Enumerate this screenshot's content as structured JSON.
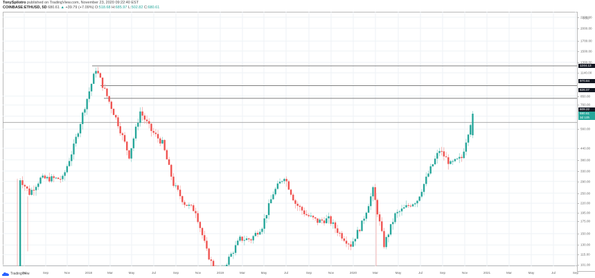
{
  "header": {
    "author": "TonySpilotro",
    "published": "published on TradingView.com, November 23, 2020 09:22:40 EST",
    "symbol": "COINBASE:ETHUSD, 5D",
    "last": "680.61",
    "change_arrow": "▲",
    "change": "+39.79 (+7.09%)",
    "o_label": "O:",
    "o": "518.68",
    "h_label": "H:",
    "h": "685.97",
    "l_label": "L:",
    "l": "502.82",
    "c_label": "C:",
    "c": "680.61"
  },
  "footer": {
    "logo_text": "TradingView",
    "logo_icon": "tradingview-cloud-icon"
  },
  "colors": {
    "up": "#26a69a",
    "down": "#ef5350",
    "grid": "#eef2f6",
    "hline": "#555555",
    "tag_dark": "#131722",
    "tag_green": "#26a69a"
  },
  "yaxis": {
    "currency": "USD",
    "labels": [
      "3000.00",
      "2600.00",
      "2300.00",
      "2000.00",
      "1700.00",
      "1500.00",
      "1300.00",
      "1140.00",
      "850.00",
      "760.00",
      "660.00",
      "560.00",
      "440.00",
      "380.00",
      "330.00",
      "290.00",
      "250.00",
      "220.00",
      "195.00",
      "175.00",
      "150.00",
      "130.00",
      "115.00",
      "101.00",
      "89.00",
      "79.00",
      "70.00",
      "62.00",
      "55.00"
    ],
    "price_tags": [
      {
        "label": "1244.13",
        "style": "dark"
      },
      {
        "label": "970.84",
        "style": "dark"
      },
      {
        "label": "826.07",
        "style": "dark"
      },
      {
        "label": "609.22",
        "style": "dark"
      },
      {
        "label": "680.61",
        "style": "green"
      },
      {
        "label": "3d 10h",
        "style": "green"
      }
    ]
  },
  "xaxis": {
    "labels": [
      "Jul",
      "Sep",
      "Nov",
      "2018",
      "Mar",
      "May",
      "Jul",
      "Sep",
      "Nov",
      "2019",
      "Mar",
      "May",
      "Jul",
      "Sep",
      "Nov",
      "2020",
      "Mar",
      "May",
      "Jul",
      "Sep",
      "Nov",
      "2021",
      "Mar",
      "May",
      "Jul",
      "Sep"
    ]
  },
  "chart_data": {
    "type": "candlestick",
    "title": "COINBASE:ETHUSD, 5D",
    "xlabel": "",
    "ylabel": "USD",
    "yscale": "log",
    "ylim": [
      50,
      3000
    ],
    "x_range": [
      "2017-05",
      "2021-09"
    ],
    "horizontal_levels": [
      1244.13,
      970.84,
      826.07,
      609.22
    ],
    "last_price": 680.61,
    "ohlc_last": {
      "open": 518.68,
      "high": 685.97,
      "low": 502.82,
      "close": 680.61,
      "change": 39.79,
      "change_pct": 7.09
    },
    "approx_path": [
      {
        "date": "2017-06",
        "close": 90
      },
      {
        "date": "2017-06-20",
        "close": 300
      },
      {
        "date": "2017-07",
        "close": 250
      },
      {
        "date": "2017-08",
        "close": 300
      },
      {
        "date": "2017-09",
        "close": 300
      },
      {
        "date": "2017-10",
        "close": 300
      },
      {
        "date": "2017-11",
        "close": 450
      },
      {
        "date": "2017-12",
        "close": 750
      },
      {
        "date": "2018-01",
        "close": 1200
      },
      {
        "date": "2018-02",
        "close": 850
      },
      {
        "date": "2018-03",
        "close": 600
      },
      {
        "date": "2018-04",
        "close": 400
      },
      {
        "date": "2018-05",
        "close": 700
      },
      {
        "date": "2018-06",
        "close": 550
      },
      {
        "date": "2018-07",
        "close": 470
      },
      {
        "date": "2018-08",
        "close": 280
      },
      {
        "date": "2018-09",
        "close": 220
      },
      {
        "date": "2018-10",
        "close": 200
      },
      {
        "date": "2018-11",
        "close": 120
      },
      {
        "date": "2018-12",
        "close": 85
      },
      {
        "date": "2019-01",
        "close": 110
      },
      {
        "date": "2019-02",
        "close": 140
      },
      {
        "date": "2019-03",
        "close": 140
      },
      {
        "date": "2019-04",
        "close": 165
      },
      {
        "date": "2019-05",
        "close": 250
      },
      {
        "date": "2019-06",
        "close": 310
      },
      {
        "date": "2019-07",
        "close": 220
      },
      {
        "date": "2019-08",
        "close": 190
      },
      {
        "date": "2019-09",
        "close": 175
      },
      {
        "date": "2019-10",
        "close": 180
      },
      {
        "date": "2019-11",
        "close": 150
      },
      {
        "date": "2019-12",
        "close": 130
      },
      {
        "date": "2020-01",
        "close": 170
      },
      {
        "date": "2020-02",
        "close": 260
      },
      {
        "date": "2020-03",
        "close": 130
      },
      {
        "date": "2020-04",
        "close": 190
      },
      {
        "date": "2020-05",
        "close": 210
      },
      {
        "date": "2020-06",
        "close": 230
      },
      {
        "date": "2020-07",
        "close": 320
      },
      {
        "date": "2020-08",
        "close": 430
      },
      {
        "date": "2020-09",
        "close": 360
      },
      {
        "date": "2020-10",
        "close": 390
      },
      {
        "date": "2020-11",
        "close": 680
      }
    ]
  }
}
